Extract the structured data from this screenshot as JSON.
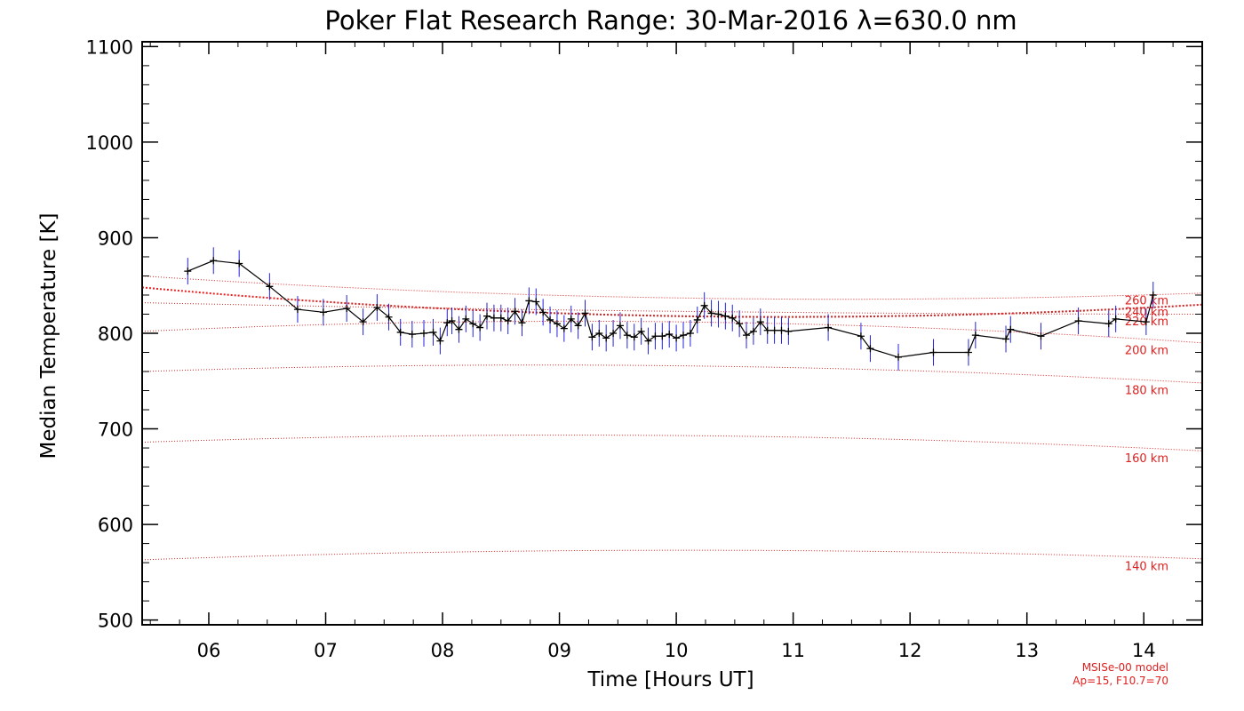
{
  "chart_data": {
    "type": "line",
    "title": "Poker Flat Research Range: 30-Mar-2016 λ=630.0 nm",
    "xlabel": "Time [Hours UT]",
    "ylabel": "Median Temperature [K]",
    "xlim": [
      5.43,
      14.5
    ],
    "ylim": [
      495,
      1105
    ],
    "x_ticks": [
      6,
      7,
      8,
      9,
      10,
      11,
      12,
      13,
      14
    ],
    "x_tick_labels": [
      "06",
      "07",
      "08",
      "09",
      "10",
      "11",
      "12",
      "13",
      "14"
    ],
    "y_ticks": [
      500,
      600,
      700,
      800,
      900,
      1000,
      1100
    ],
    "y_tick_labels": [
      "500",
      "600",
      "700",
      "800",
      "900",
      "1000",
      "1100"
    ],
    "grid": false,
    "colors": {
      "data_line": "#000000",
      "error_bar": "#2222dd",
      "model": "#e02020",
      "axes": "#000000"
    },
    "series": [
      {
        "x": [
          5.82,
          6.04,
          6.26,
          6.52,
          6.76,
          6.98,
          7.18,
          7.32,
          7.44,
          7.54,
          7.64,
          7.74,
          7.84,
          7.92,
          7.98,
          8.04,
          8.08,
          8.14,
          8.2,
          8.26,
          8.32,
          8.38,
          8.44,
          8.5,
          8.56,
          8.62,
          8.68,
          8.74,
          8.8,
          8.86,
          8.92,
          8.98,
          9.04,
          9.1,
          9.16,
          9.22,
          9.28,
          9.34,
          9.4,
          9.46,
          9.52,
          9.58,
          9.64,
          9.7,
          9.76,
          9.82,
          9.88,
          9.94,
          10.0,
          10.06,
          10.12,
          10.18,
          10.24,
          10.3,
          10.36,
          10.42,
          10.48,
          10.54,
          10.6,
          10.66,
          10.72,
          10.78,
          10.84,
          10.9,
          10.96,
          11.3,
          11.58,
          11.66,
          11.9,
          12.2,
          12.5,
          12.56,
          12.82,
          12.86,
          13.12,
          13.44,
          13.7,
          13.76,
          14.02,
          14.08
        ],
        "y": [
          865,
          876,
          873,
          849,
          825,
          822,
          826,
          812,
          827,
          817,
          801,
          799,
          800,
          801,
          792,
          811,
          813,
          804,
          815,
          810,
          806,
          818,
          816,
          816,
          813,
          823,
          811,
          834,
          833,
          822,
          814,
          810,
          805,
          815,
          808,
          821,
          796,
          800,
          795,
          800,
          808,
          798,
          796,
          802,
          792,
          797,
          797,
          799,
          795,
          798,
          800,
          814,
          829,
          821,
          820,
          818,
          816,
          810,
          798,
          802,
          812,
          803,
          803,
          803,
          802,
          806,
          797,
          784,
          775,
          780,
          780,
          798,
          794,
          804,
          797,
          813,
          810,
          815,
          812,
          840
        ]
      }
    ],
    "model_curves": [
      {
        "label": "260 km",
        "x": [
          5.43,
          10.0,
          14.5
        ],
        "y": [
          860,
          837,
          842
        ]
      },
      {
        "label": "240 km",
        "x": [
          5.43,
          10.0,
          14.5
        ],
        "y": [
          848,
          818,
          830
        ]
      },
      {
        "label": "220 km",
        "x": [
          5.43,
          10.0,
          14.5
        ],
        "y": [
          832,
          823,
          820
        ]
      },
      {
        "label": "200 km",
        "x": [
          5.43,
          10.0,
          14.5
        ],
        "y": [
          802,
          812,
          790
        ]
      },
      {
        "label": "180 km",
        "x": [
          5.43,
          10.0,
          14.5
        ],
        "y": [
          760,
          766,
          748
        ]
      },
      {
        "label": "160 km",
        "x": [
          5.43,
          10.0,
          14.5
        ],
        "y": [
          686,
          693,
          677
        ]
      },
      {
        "label": "140 km",
        "x": [
          5.43,
          10.0,
          14.5
        ],
        "y": [
          563,
          573,
          564
        ]
      }
    ],
    "annotations": [
      "MSISe-00 model",
      "Ap=15, F10.7=70"
    ]
  }
}
